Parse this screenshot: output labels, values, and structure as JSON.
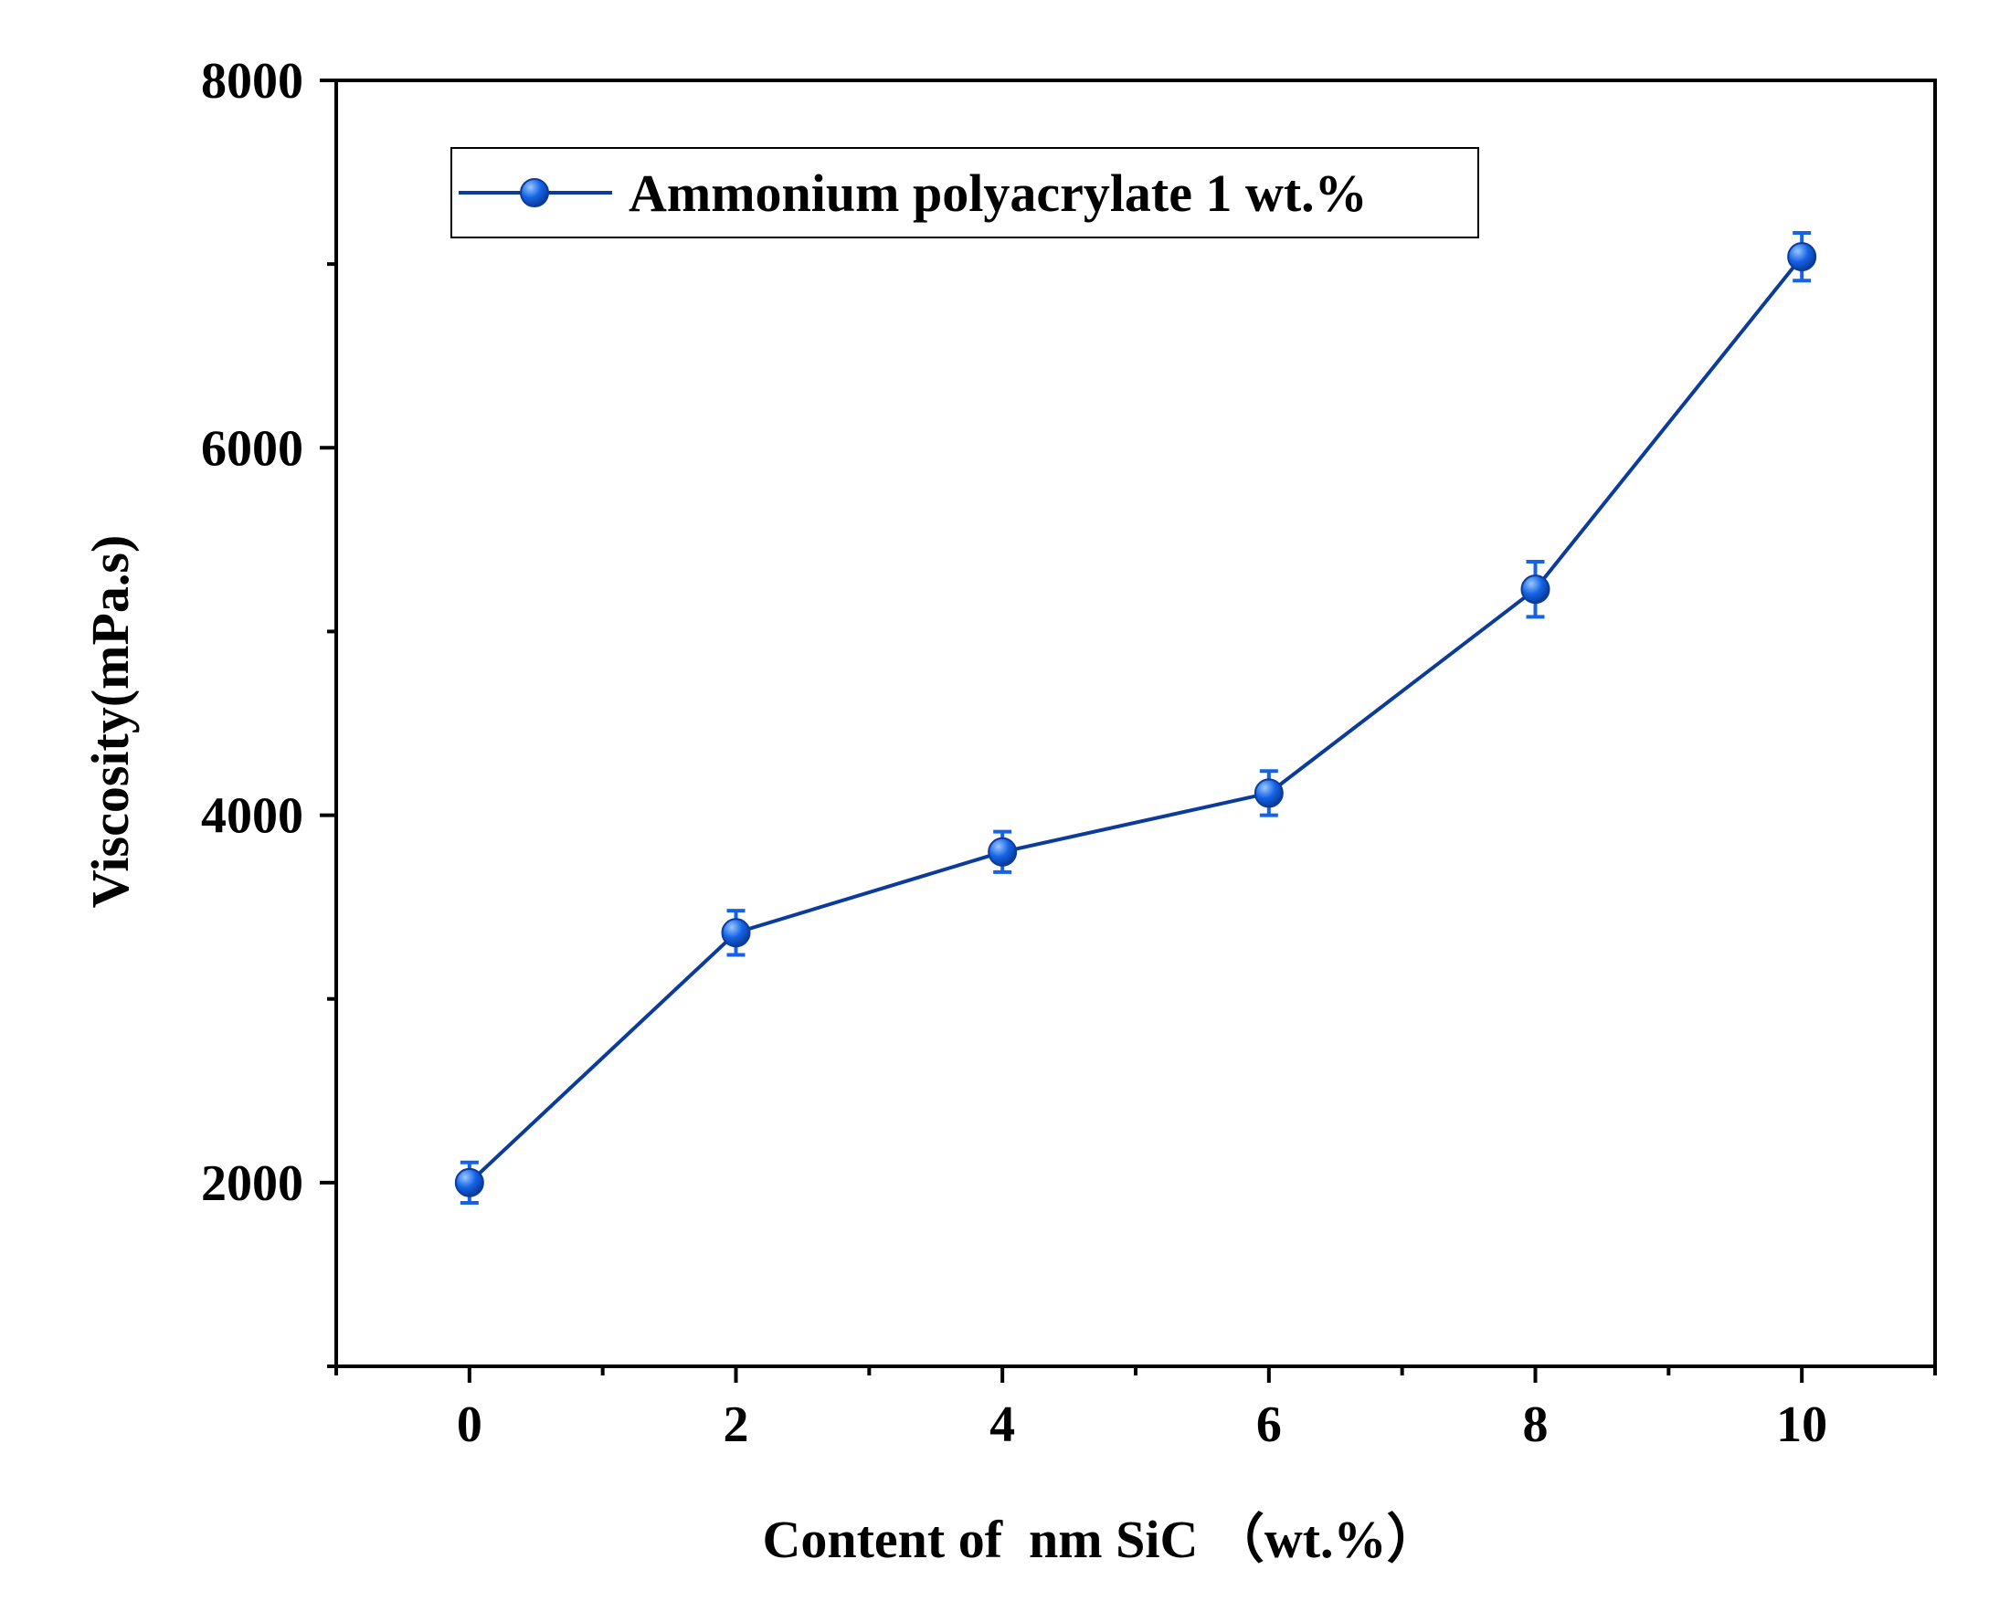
{
  "colors": {
    "line": "#0B3C9C",
    "marker": "#1463E6",
    "marker_highlight": "#9CC7FF",
    "errorbar": "#1463E6",
    "axis": "#000000",
    "background": "#FFFFFF"
  },
  "chart_data": {
    "type": "line",
    "title": "",
    "xlabel": "Content of  nm SiC （wt.%）",
    "ylabel": "Viscosity(mPa.s)",
    "xlim": [
      -1,
      11
    ],
    "ylim": [
      1000,
      8000
    ],
    "x_ticks": [
      0,
      2,
      4,
      6,
      8,
      10
    ],
    "x_tick_labels": [
      "0",
      "2",
      "4",
      "6",
      "8",
      "10"
    ],
    "x_minor_ticks": [
      -1,
      1,
      3,
      5,
      7,
      9,
      11
    ],
    "y_ticks": [
      2000,
      4000,
      6000,
      8000
    ],
    "y_tick_labels": [
      "2000",
      "4000",
      "6000",
      "8000"
    ],
    "y_minor_ticks": [
      1000,
      3000,
      5000,
      7000
    ],
    "grid": false,
    "legend_position": "top-left",
    "series": [
      {
        "name": "Ammonium polyacrylate 1 wt.%",
        "x": [
          0,
          2,
          4,
          6,
          8,
          10
        ],
        "y": [
          2000,
          3360,
          3800,
          4120,
          5230,
          7040
        ],
        "error": [
          110,
          120,
          110,
          120,
          150,
          130
        ]
      }
    ]
  }
}
